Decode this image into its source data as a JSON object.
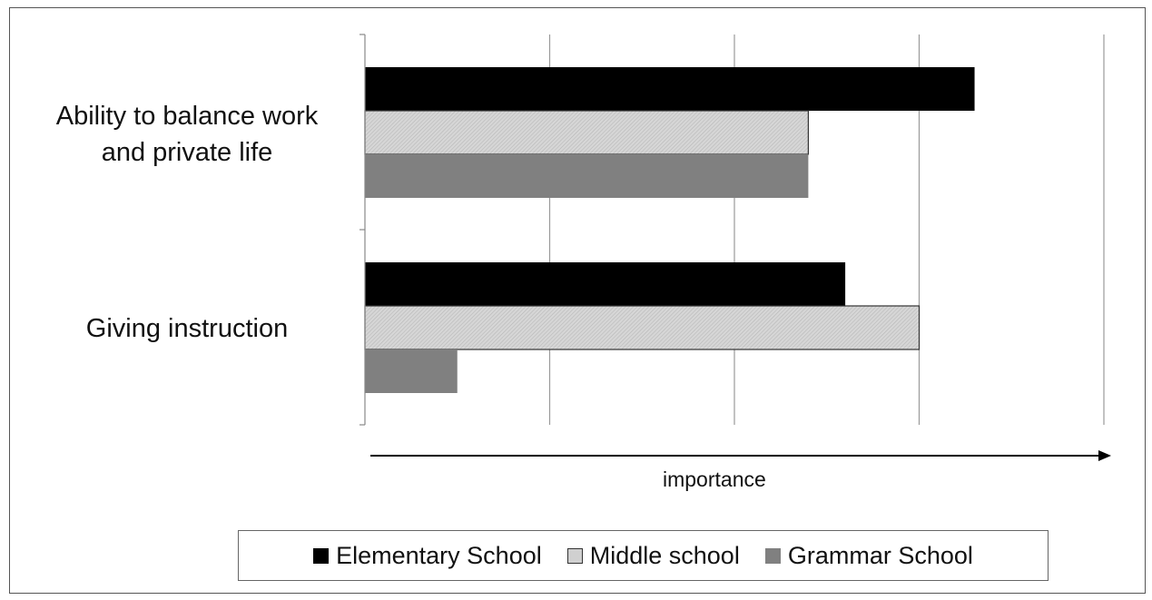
{
  "chart_data": {
    "type": "bar",
    "orientation": "horizontal",
    "categories": [
      "Ability to balance work and private life",
      "Giving instruction"
    ],
    "category_lines": [
      [
        "Ability to balance work",
        "and private life"
      ],
      [
        "Giving instruction"
      ]
    ],
    "series": [
      {
        "name": "Elementary School",
        "values": [
          3.3,
          2.6
        ],
        "color": "#000000"
      },
      {
        "name": "Middle school",
        "values": [
          2.4,
          3.0
        ],
        "color": "#d0d0d0"
      },
      {
        "name": "Grammar School",
        "values": [
          2.4,
          0.5
        ],
        "color": "#808080"
      }
    ],
    "xlabel": "importance",
    "xlim": [
      0,
      4
    ],
    "grid": true,
    "legend_position": "bottom"
  }
}
